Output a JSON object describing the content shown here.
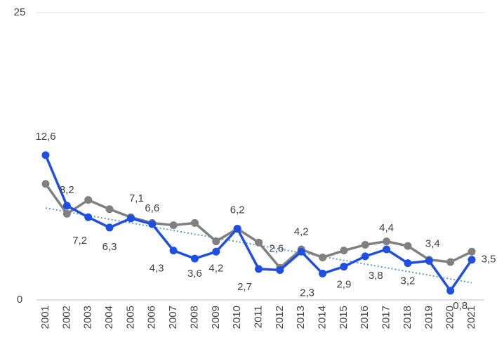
{
  "chart_data": {
    "type": "line",
    "categories": [
      "2001",
      "2002",
      "2003",
      "2004",
      "2005",
      "2006",
      "2007",
      "2008",
      "2009",
      "2010",
      "2011",
      "2012",
      "2013",
      "2014",
      "2015",
      "2016",
      "2017",
      "2018",
      "2019",
      "2020",
      "2021"
    ],
    "series": [
      {
        "color": "#1f4fe0",
        "values": [
          12.6,
          8.2,
          7.2,
          6.3,
          7.1,
          6.6,
          4.3,
          3.6,
          4.2,
          6.2,
          2.7,
          2.6,
          4.2,
          2.3,
          2.9,
          3.8,
          4.4,
          3.2,
          3.4,
          0.8,
          3.5
        ],
        "value_labels": [
          "12,6",
          "8,2",
          "7,2",
          "6,3",
          "7,1",
          "6,6",
          "4,3",
          "3,6",
          "4,2",
          "6,2",
          "2,7",
          "2,6",
          "4,2",
          "2,3",
          "2,9",
          "3,8",
          "4,4",
          "3,2",
          "3,4",
          "0,8",
          "3,5"
        ]
      },
      {
        "color": "#808080",
        "values": [
          10.1,
          7.5,
          8.7,
          7.9,
          7.2,
          6.7,
          6.5,
          6.7,
          5.1,
          6.2,
          5.0,
          2.8,
          4.4,
          3.7,
          4.3,
          4.8,
          5.1,
          4.7,
          3.5,
          3.3,
          4.2
        ]
      }
    ],
    "trendline": {
      "color": "#5b9bd5",
      "start": 8.0,
      "end": 1.5
    },
    "ylim": [
      0,
      25
    ],
    "yticks": [
      0,
      25
    ],
    "grid": true
  }
}
